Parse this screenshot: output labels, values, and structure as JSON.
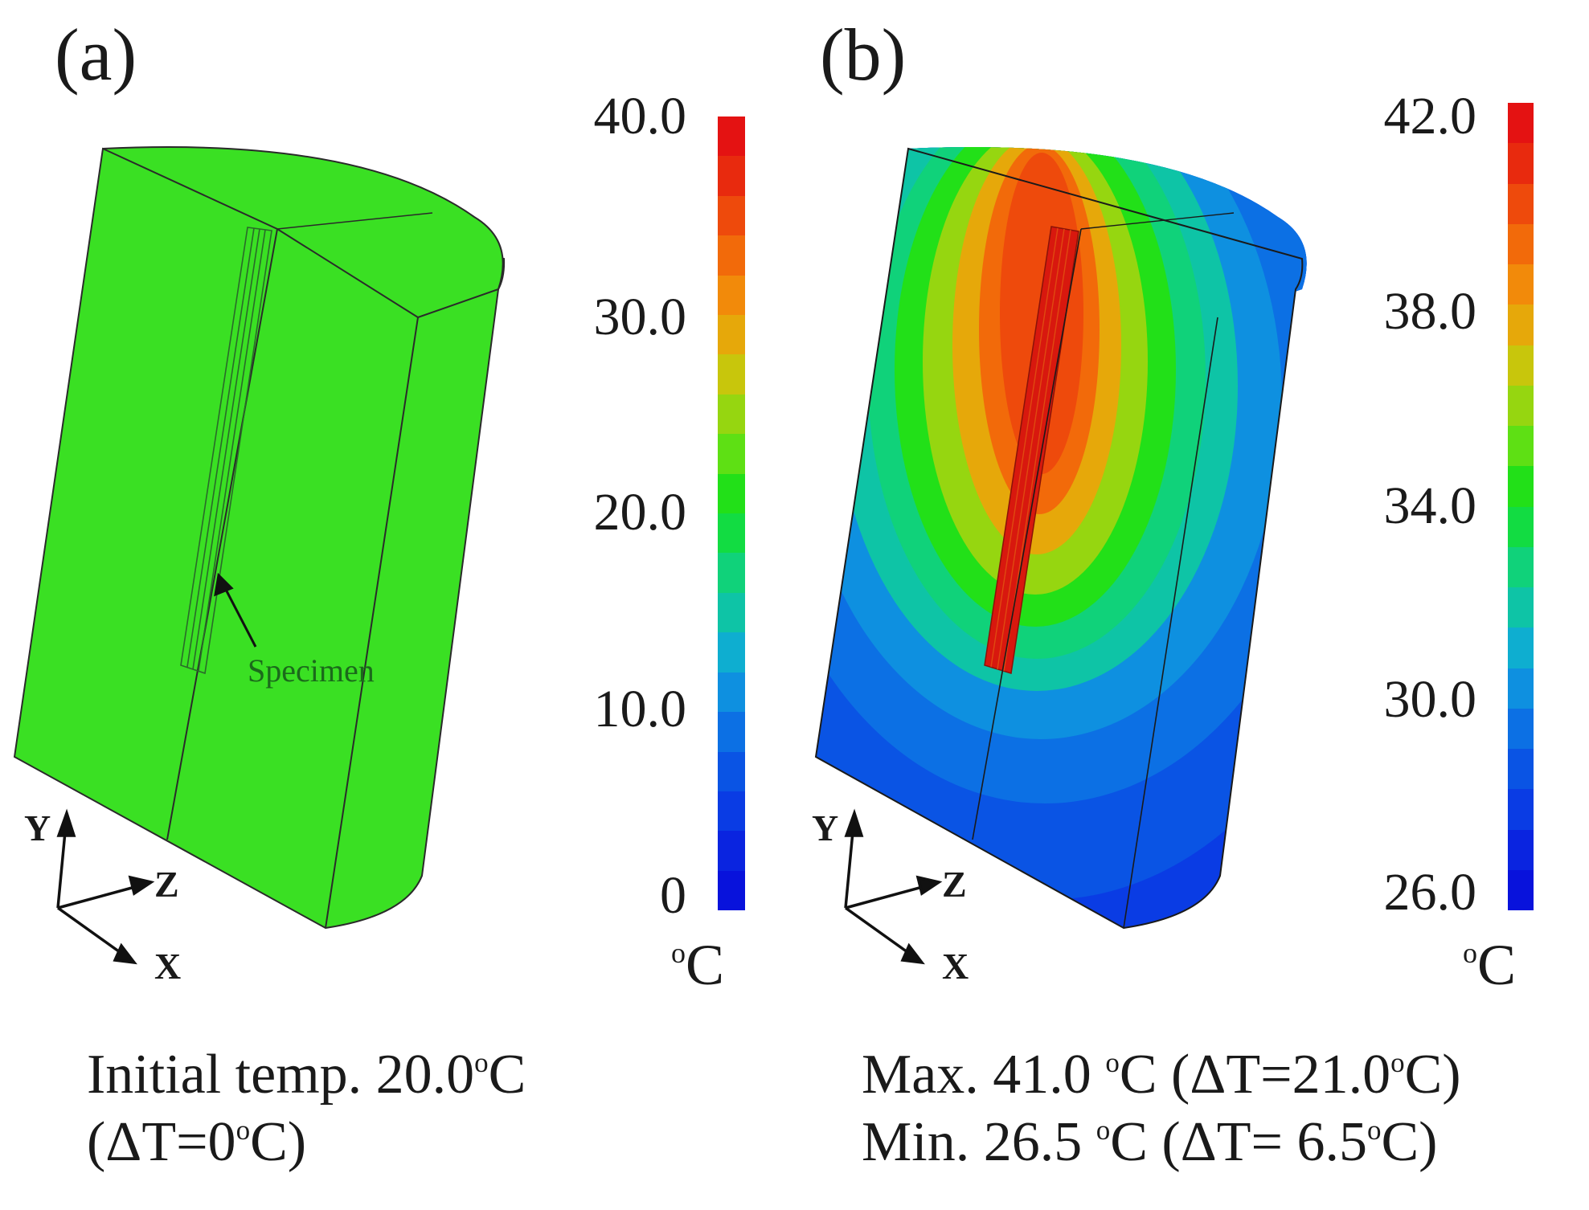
{
  "panels": [
    {
      "label": "(a)",
      "colorbar": {
        "ticks": [
          "40.0",
          "30.0",
          "20.0",
          "10.0",
          "0"
        ],
        "unit_sup": "o",
        "unit_main": "C",
        "colors": [
          "#e41212",
          "#e82a0e",
          "#ee4a0c",
          "#f26a0a",
          "#f28a0a",
          "#e6a80a",
          "#c8c60c",
          "#96d610",
          "#5ee014",
          "#22e018",
          "#12dc42",
          "#10d27a",
          "#0ec4a6",
          "#0eaed0",
          "#0e90e0",
          "#0c70e4",
          "#0a54e4",
          "#0a3ce4",
          "#0a24e0",
          "#0812dc"
        ]
      },
      "annotation": "Specimen",
      "axes": {
        "y": "Y",
        "z": "Z",
        "x": "X"
      },
      "caption": {
        "line1_prefix": "Initial temp.  20.0",
        "line1_sup": "o",
        "line1_suffix": "C",
        "line2_prefix": "(ΔT=0",
        "line2_sup": "o",
        "line2_suffix": "C)"
      },
      "colors": {
        "body": "#3ae023",
        "edge": "#2a2a2a"
      }
    },
    {
      "label": "(b)",
      "colorbar": {
        "ticks": [
          "42.0",
          "38.0",
          "34.0",
          "30.0",
          "26.0"
        ],
        "unit_sup": "o",
        "unit_main": "C",
        "colors": [
          "#e41212",
          "#e82a0e",
          "#ee4a0c",
          "#f26a0a",
          "#f28a0a",
          "#e6a80a",
          "#c8c60c",
          "#96d610",
          "#5ee014",
          "#22e018",
          "#12dc42",
          "#10d27a",
          "#0ec4a6",
          "#0eaed0",
          "#0e90e0",
          "#0c70e4",
          "#0a54e4",
          "#0a3ce4",
          "#0a24e0",
          "#0812dc"
        ]
      },
      "axes": {
        "y": "Y",
        "z": "Z",
        "x": "X"
      },
      "caption": {
        "max_prefix": "Max. 41.0 ",
        "max_sup": "o",
        "max_mid": "C (ΔT=21.0",
        "max_sup2": "o",
        "max_suffix": "C)",
        "min_prefix": "Min.  26.5 ",
        "min_sup": "o",
        "min_mid": "C (ΔT=  6.5",
        "min_sup2": "o",
        "min_suffix": "C)"
      },
      "colors": {
        "hot": "#d8180e",
        "cold": "#0a3ce4"
      }
    }
  ]
}
